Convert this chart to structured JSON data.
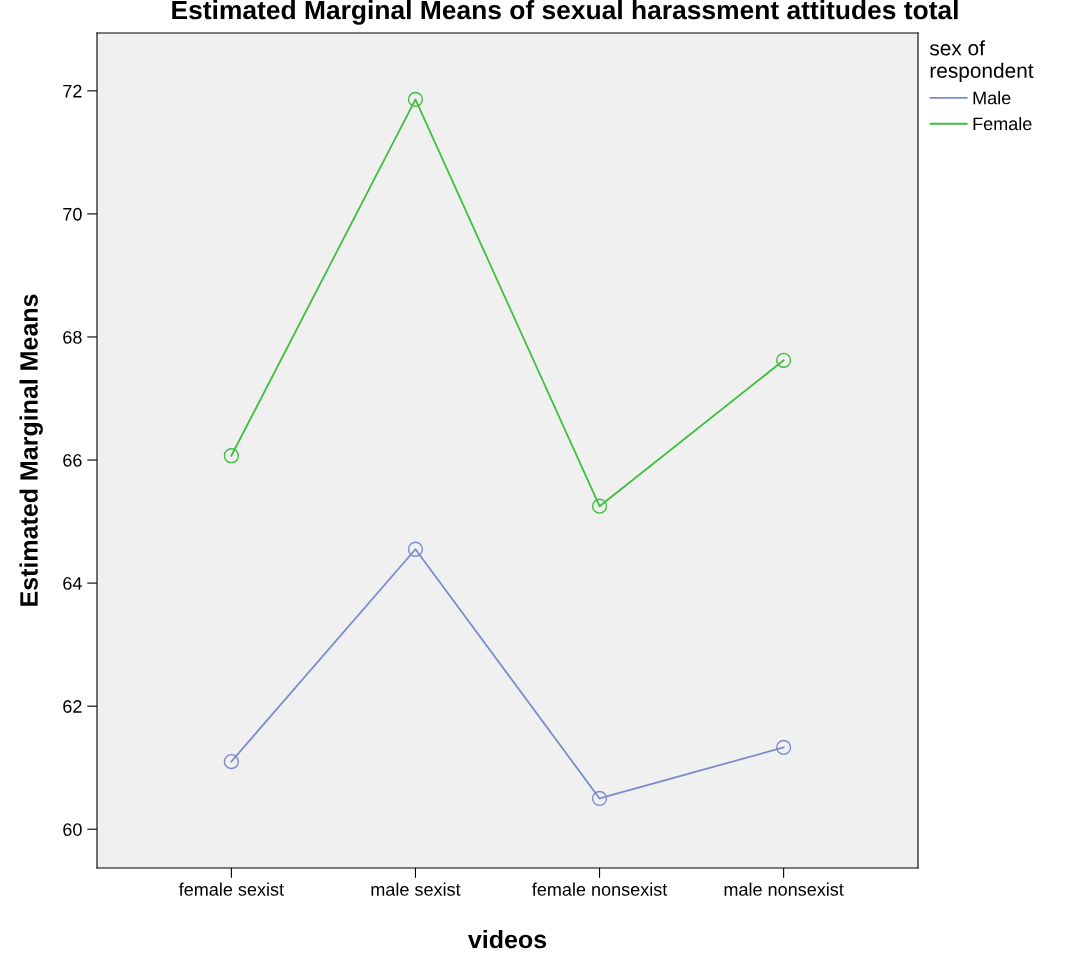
{
  "chart_data": {
    "type": "line",
    "title": "Estimated Marginal Means of sexual harassment attitudes total",
    "xlabel": "videos",
    "ylabel": "Estimated Marginal Means",
    "legend_title": "sex of\nrespondent",
    "categories": [
      "female sexist",
      "male sexist",
      "female nonsexist",
      "male nonsexist"
    ],
    "series": [
      {
        "name": "Male",
        "color": "#7a8bcc",
        "values": [
          61.1,
          64.55,
          60.5,
          61.33
        ]
      },
      {
        "name": "Female",
        "color": "#3fbf3f",
        "values": [
          66.07,
          71.86,
          65.25,
          67.62
        ]
      }
    ],
    "ylim": [
      59.37,
      72.94
    ],
    "yticks": [
      60,
      62,
      64,
      66,
      68,
      70,
      72
    ],
    "grid": false,
    "legend": "top right",
    "marker": "circle",
    "line_style": "solid"
  }
}
